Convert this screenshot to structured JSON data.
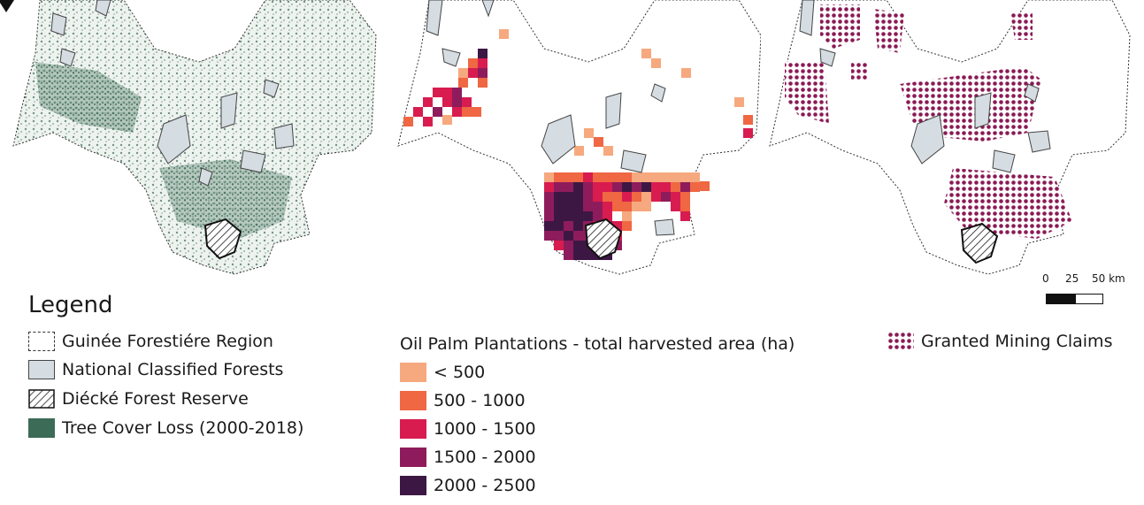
{
  "legend": {
    "title": "Legend",
    "region": "Guinée Forestiére Region",
    "classified_forests": "National Classified Forests",
    "reserve": "Diécké Forest Reserve",
    "tree_cover_loss": "Tree Cover Loss (2000-2018)"
  },
  "oil_palm": {
    "title": "Oil Palm Plantations - total harvested area (ha)",
    "classes": [
      {
        "label": "< 500",
        "color": "#f6a97e"
      },
      {
        "label": "500 - 1000",
        "color": "#ef6743"
      },
      {
        "label": "1000 - 1500",
        "color": "#d81c4f"
      },
      {
        "label": "1500 - 2000",
        "color": "#8e1c5c"
      },
      {
        "label": "2000 - 2500",
        "color": "#3d1744"
      }
    ]
  },
  "mining": {
    "label": "Granted Mining Claims",
    "color": "#8a1a55"
  },
  "scale": {
    "labels": [
      "0",
      "25",
      "50 km"
    ]
  },
  "colors": {
    "forest_fill": "#d5dde3",
    "tree_loss": "#3c6b57",
    "region_fill": "#ffffff"
  },
  "icons": {
    "north_arrow": "north-arrow-icon"
  }
}
